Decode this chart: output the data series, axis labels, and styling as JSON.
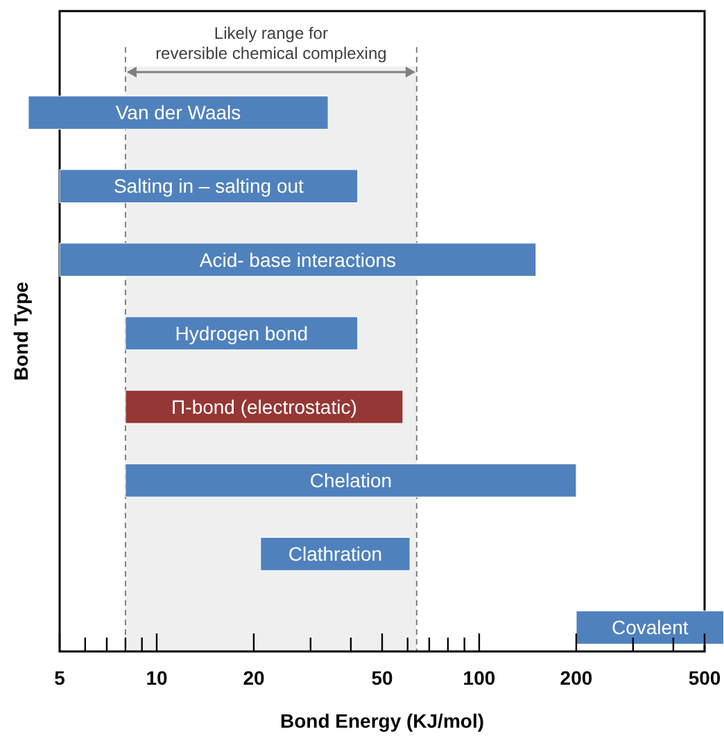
{
  "chart_data": {
    "type": "bar",
    "orientation": "horizontal",
    "xlabel": "Bond Energy (KJ/mol)",
    "ylabel": "Bond Type",
    "categories": [
      "Van der Waals",
      "Salting in – salting out",
      "Acid- base interactions",
      "Hydrogen bond",
      "Π-bond (electrostatic)",
      "Chelation",
      "Clathration",
      "Covalent"
    ],
    "base": [
      4,
      5,
      5,
      8,
      8,
      8,
      21,
      200
    ],
    "values": [
      30,
      37,
      145,
      34,
      50,
      192,
      40,
      373
    ],
    "colors": [
      "#4f81bd",
      "#4f81bd",
      "#4f81bd",
      "#4f81bd",
      "#953735",
      "#4f81bd",
      "#4f81bd",
      "#4f81bd"
    ],
    "log": "x",
    "xlim": [
      5,
      500
    ],
    "xticks": [
      5,
      {
        "value": 6,
        "label": null
      },
      {
        "value": 7,
        "label": null
      },
      {
        "value": 8,
        "label": null
      },
      {
        "value": 9,
        "label": null
      },
      10,
      20,
      {
        "value": 30,
        "label": null
      },
      {
        "value": 40,
        "label": null
      },
      50,
      {
        "value": 60,
        "label": null
      },
      {
        "value": 70,
        "label": null
      },
      {
        "value": 80,
        "label": null
      },
      {
        "value": 90,
        "label": null
      },
      100,
      200,
      {
        "value": 300,
        "label": null
      },
      {
        "value": 400,
        "label": null
      },
      500
    ],
    "tick_labels": "x",
    "bands": [
      {
        "axis": "x",
        "from": 8,
        "to": 64,
        "label": "Likely range for reversible chemical complexing",
        "color": "#efefef"
      }
    ]
  }
}
